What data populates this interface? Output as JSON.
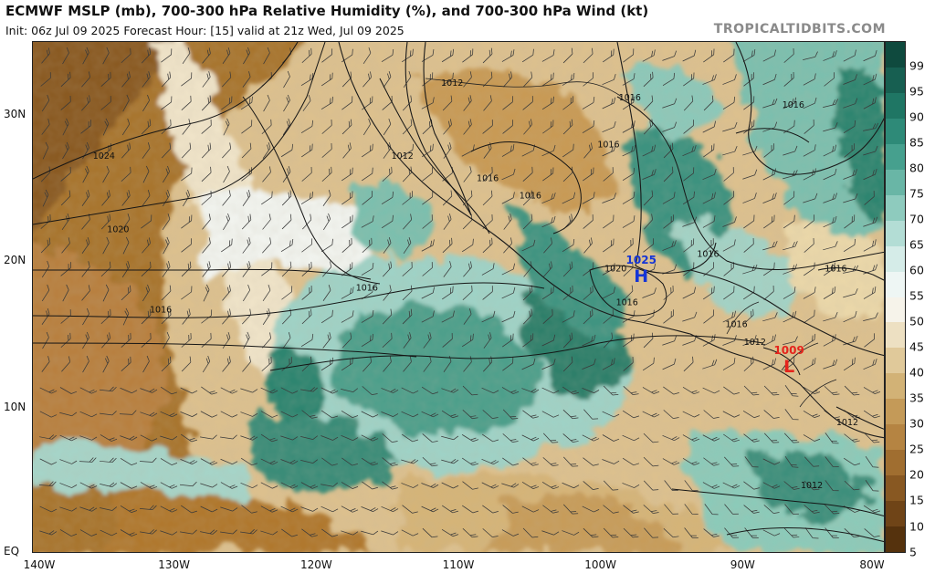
{
  "header": {
    "title": "ECMWF MSLP (mb), 700-300 hPa Relative Humidity (%), and 700-300 hPa Wind (kt)",
    "subtitle": "Init: 06z Jul 09 2025   Forecast Hour: [15]   valid at 21z Wed, Jul 09 2025",
    "brand": "TROPICALTIDBITS.COM"
  },
  "map": {
    "extent": {
      "lon_min": -140,
      "lon_max": -80,
      "lat_min": 0,
      "lat_max": 35
    },
    "lat_labels": [
      "30N",
      "20N",
      "10N",
      "EQ"
    ],
    "lon_labels": [
      "140W",
      "130W",
      "120W",
      "110W",
      "100W",
      "90W",
      "80W"
    ],
    "isobars": [
      {
        "label": "1024",
        "lon": -135,
        "lat": 27
      },
      {
        "label": "1020",
        "lon": -134,
        "lat": 22
      },
      {
        "label": "1016",
        "lon": -131,
        "lat": 16.5
      },
      {
        "label": "1016",
        "lon": -116.5,
        "lat": 18
      },
      {
        "label": "1012",
        "lon": -114,
        "lat": 27
      },
      {
        "label": "1012",
        "lon": -110.5,
        "lat": 32
      },
      {
        "label": "1016",
        "lon": -108,
        "lat": 25.5
      },
      {
        "label": "1016",
        "lon": -105,
        "lat": 24.3
      },
      {
        "label": "1016",
        "lon": -99.5,
        "lat": 27.8
      },
      {
        "label": "1016",
        "lon": -98,
        "lat": 31
      },
      {
        "label": "1016",
        "lon": -86.5,
        "lat": 30.5
      },
      {
        "label": "1016",
        "lon": -92.5,
        "lat": 20.3
      },
      {
        "label": "1016",
        "lon": -83.5,
        "lat": 19.3
      },
      {
        "label": "1016",
        "lon": -98.2,
        "lat": 17
      },
      {
        "label": "1016",
        "lon": -90.5,
        "lat": 15.5
      },
      {
        "label": "1012",
        "lon": -89.2,
        "lat": 14.3
      },
      {
        "label": "1020",
        "lon": -99,
        "lat": 19.3
      },
      {
        "label": "1012",
        "lon": -82.7,
        "lat": 8.8
      },
      {
        "label": "1012",
        "lon": -85.2,
        "lat": 4.5
      }
    ],
    "pressure_centers": [
      {
        "letter": "H",
        "value": "1025",
        "lon": -97.2,
        "lat": 19.1,
        "color": "#1535d6"
      },
      {
        "letter": "L",
        "value": "1009",
        "lon": -86.8,
        "lat": 12.9,
        "color": "#e5241c"
      }
    ]
  },
  "colorbar": {
    "labels": [
      "99",
      "95",
      "90",
      "85",
      "80",
      "75",
      "70",
      "65",
      "60",
      "55",
      "50",
      "45",
      "40",
      "35",
      "30",
      "25",
      "20",
      "15",
      "10",
      "5"
    ],
    "colors": [
      "#0f4a3e",
      "#175f51",
      "#1f7664",
      "#2e8a78",
      "#46a08e",
      "#69b6a6",
      "#8ecbbe",
      "#b3ddd5",
      "#d5ece8",
      "#eef6f4",
      "#f6f3ea",
      "#ede0c2",
      "#e0c99a",
      "#d2b276",
      "#c49a58",
      "#b58442",
      "#a06e30",
      "#885822",
      "#6f4417",
      "#55320d"
    ]
  }
}
